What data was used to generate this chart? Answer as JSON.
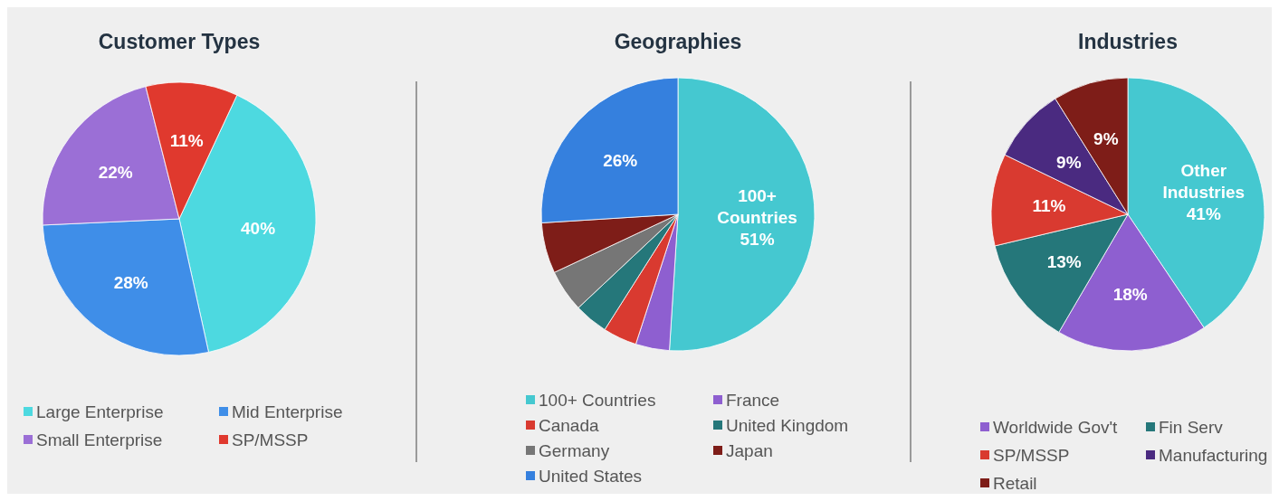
{
  "chart_data": [
    {
      "type": "pie",
      "title": "Customer Types",
      "categories": [
        "Large Enterprise",
        "Mid Enterprise",
        "Small Enterprise",
        "SP/MSSP"
      ],
      "values": [
        40,
        28,
        22,
        11
      ],
      "colors": [
        "#4dd9e0",
        "#3f8ee8",
        "#9b6fd6",
        "#e0392e"
      ],
      "value_labels": [
        "40%",
        "28%",
        "22%",
        "11%"
      ],
      "legend": "bottom"
    },
    {
      "type": "pie",
      "title": "Geographies",
      "categories": [
        "100+ Countries",
        "France",
        "Canada",
        "United Kingdom",
        "Germany",
        "Japan",
        "United States"
      ],
      "values": [
        51,
        4,
        4,
        4,
        5,
        6,
        26
      ],
      "colors": [
        "#45c8d0",
        "#8e5fd0",
        "#d93a30",
        "#25777a",
        "#767676",
        "#7e1d18",
        "#3580de"
      ],
      "value_labels": [
        "100+\nCountries\n51%",
        null,
        null,
        null,
        null,
        null,
        "26%"
      ],
      "legend": "bottom"
    },
    {
      "type": "pie",
      "title": "Industries",
      "categories": [
        null,
        "Worldwide Gov't",
        "Fin Serv",
        "SP/MSSP",
        "Manufacturing",
        "Retail"
      ],
      "values": [
        41,
        18,
        13,
        11,
        9,
        9
      ],
      "colors": [
        "#45c8d0",
        "#8e5fd0",
        "#25777a",
        "#d93a30",
        "#4a2a80",
        "#7e1d18"
      ],
      "value_labels": [
        "Other\nIndustries\n41%",
        "18%",
        "13%",
        "11%",
        "9%",
        "9%"
      ],
      "legend": "bottom"
    }
  ]
}
